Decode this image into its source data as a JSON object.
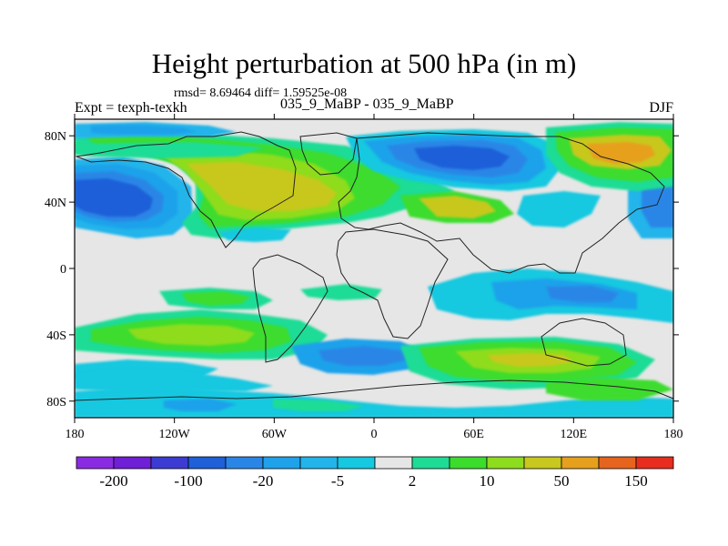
{
  "chart_data": {
    "type": "heatmap",
    "title": "Height perturbation at 500 hPa (in m)",
    "stats": "rmsd= 8.69464 diff= 1.59525e-08",
    "left_label": "Expt = texph-texkh",
    "center_label": "035_9_MaBP - 035_9_MaBP",
    "right_label": "DJF",
    "xlim": [
      -180,
      180
    ],
    "ylim": [
      -90,
      90
    ],
    "x_ticks": [
      {
        "value": -180,
        "label": "180"
      },
      {
        "value": -120,
        "label": "120W"
      },
      {
        "value": -60,
        "label": "60W"
      },
      {
        "value": 0,
        "label": "0"
      },
      {
        "value": 60,
        "label": "60E"
      },
      {
        "value": 120,
        "label": "120E"
      },
      {
        "value": 180,
        "label": "180"
      }
    ],
    "y_ticks": [
      {
        "value": 80,
        "label": "80N"
      },
      {
        "value": 40,
        "label": "40N"
      },
      {
        "value": 0,
        "label": "0"
      },
      {
        "value": -40,
        "label": "40S"
      },
      {
        "value": -80,
        "label": "80S"
      }
    ],
    "levels": [
      -200,
      -150,
      -100,
      -50,
      -20,
      -10,
      -5,
      -2,
      2,
      5,
      10,
      20,
      50,
      100,
      150,
      200
    ],
    "colorbar_labels": [
      {
        "value": -200,
        "label": "-200"
      },
      {
        "value": -100,
        "label": "-100"
      },
      {
        "value": -20,
        "label": "-20"
      },
      {
        "value": -5,
        "label": "-5"
      },
      {
        "value": 2,
        "label": "2"
      },
      {
        "value": 10,
        "label": "10"
      },
      {
        "value": 50,
        "label": "50"
      },
      {
        "value": 150,
        "label": "150"
      }
    ],
    "colors": [
      "#8a2be2",
      "#6f1fd6",
      "#3c3cd2",
      "#1f5fd8",
      "#2a86e6",
      "#1fa2ea",
      "#22b4ea",
      "#16c8e0",
      "#e6e6e6",
      "#1edc96",
      "#3cdc2d",
      "#8edc1e",
      "#c8c81e",
      "#e6a01e",
      "#e6641e",
      "#e62d1e"
    ],
    "features": [
      {
        "name": "north-pacific-low",
        "lon": -160,
        "lat": 45,
        "value": -50
      },
      {
        "name": "north-atlantic-ridge",
        "lon": -60,
        "lat": 48,
        "value": 50
      },
      {
        "name": "eurasia-low",
        "lon": 55,
        "lat": 63,
        "value": -40
      },
      {
        "name": "north-pacific-ridge",
        "lon": 150,
        "lat": 68,
        "value": 40
      },
      {
        "name": "south-atlantic-ridge",
        "lon": -110,
        "lat": -38,
        "value": 20
      },
      {
        "name": "southern-ocean-ridge",
        "lon": 80,
        "lat": -55,
        "value": 30
      },
      {
        "name": "south-pacific-low",
        "lon": 140,
        "lat": -10,
        "value": -10
      }
    ]
  }
}
